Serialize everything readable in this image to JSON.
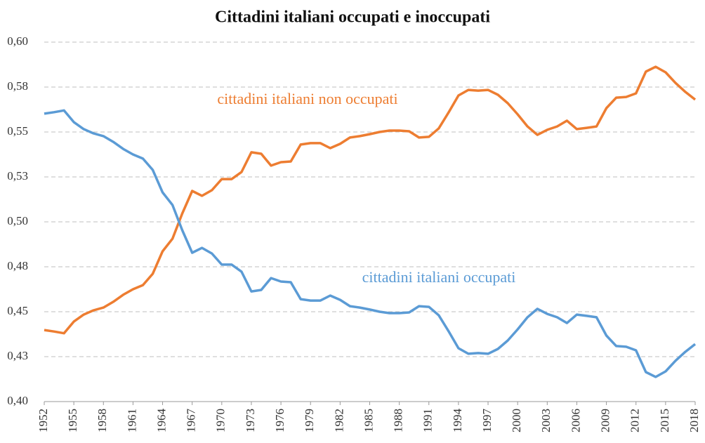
{
  "chart_data": {
    "type": "line",
    "title": "Cittadini italiani occupati e inoccupati",
    "x": [
      1952,
      1953,
      1954,
      1955,
      1956,
      1957,
      1958,
      1959,
      1960,
      1961,
      1962,
      1963,
      1964,
      1965,
      1966,
      1967,
      1968,
      1969,
      1970,
      1971,
      1972,
      1973,
      1974,
      1975,
      1976,
      1977,
      1978,
      1979,
      1980,
      1981,
      1982,
      1983,
      1984,
      1985,
      1986,
      1987,
      1988,
      1989,
      1990,
      1991,
      1992,
      1993,
      1994,
      1995,
      1996,
      1997,
      1998,
      1999,
      2000,
      2001,
      2002,
      2003,
      2004,
      2005,
      2006,
      2007,
      2008,
      2009,
      2010,
      2011,
      2012,
      2013,
      2014,
      2015,
      2016,
      2017,
      2018
    ],
    "xlim": [
      1952,
      2018
    ],
    "xticks": [
      1952,
      1955,
      1958,
      1961,
      1964,
      1967,
      1970,
      1973,
      1976,
      1979,
      1982,
      1985,
      1988,
      1991,
      1994,
      1997,
      2000,
      2003,
      2006,
      2009,
      2012,
      2015,
      2018
    ],
    "ylim": [
      0.4,
      0.6
    ],
    "yticks": [
      {
        "value": 0.4,
        "label": "0,40"
      },
      {
        "value": 0.425,
        "label": "0,43"
      },
      {
        "value": 0.45,
        "label": "0,45"
      },
      {
        "value": 0.475,
        "label": "0,48"
      },
      {
        "value": 0.5,
        "label": "0,50"
      },
      {
        "value": 0.525,
        "label": "0,53"
      },
      {
        "value": 0.55,
        "label": "0,55"
      },
      {
        "value": 0.575,
        "label": "0,58"
      },
      {
        "value": 0.6,
        "label": "0,60"
      }
    ],
    "grid": true,
    "series": [
      {
        "name": "cittadini italiani non occupati",
        "color": "#ed7d31",
        "values": [
          0.4398,
          0.439,
          0.438,
          0.4445,
          0.4484,
          0.4508,
          0.4523,
          0.4555,
          0.4594,
          0.4625,
          0.4648,
          0.4711,
          0.4836,
          0.4906,
          0.5047,
          0.5172,
          0.5145,
          0.5176,
          0.5238,
          0.5238,
          0.5277,
          0.5387,
          0.5379,
          0.5313,
          0.5332,
          0.5336,
          0.543,
          0.5438,
          0.5438,
          0.541,
          0.5434,
          0.5469,
          0.5477,
          0.5488,
          0.55,
          0.5508,
          0.5508,
          0.5504,
          0.5469,
          0.5473,
          0.552,
          0.5609,
          0.5703,
          0.5734,
          0.573,
          0.5734,
          0.5707,
          0.566,
          0.5598,
          0.5531,
          0.5484,
          0.5512,
          0.5531,
          0.5563,
          0.5516,
          0.5523,
          0.5531,
          0.5633,
          0.5691,
          0.5695,
          0.5715,
          0.5836,
          0.5863,
          0.5832,
          0.5773,
          0.5723,
          0.568
        ]
      },
      {
        "name": "cittadini italiani occupati",
        "color": "#5b9bd5",
        "values": [
          0.5602,
          0.561,
          0.562,
          0.5555,
          0.5516,
          0.5492,
          0.5477,
          0.5445,
          0.5406,
          0.5375,
          0.5352,
          0.5289,
          0.5164,
          0.5094,
          0.4953,
          0.4828,
          0.4855,
          0.4824,
          0.4762,
          0.4762,
          0.4723,
          0.4613,
          0.4621,
          0.4687,
          0.4668,
          0.4664,
          0.457,
          0.4562,
          0.4562,
          0.459,
          0.4566,
          0.4531,
          0.4523,
          0.4512,
          0.45,
          0.4492,
          0.4492,
          0.4496,
          0.4531,
          0.4527,
          0.448,
          0.4391,
          0.4297,
          0.4266,
          0.427,
          0.4266,
          0.4293,
          0.434,
          0.4402,
          0.4469,
          0.4516,
          0.4488,
          0.4469,
          0.4437,
          0.4484,
          0.4477,
          0.4469,
          0.4367,
          0.4309,
          0.4305,
          0.4285,
          0.4164,
          0.4137,
          0.4168,
          0.4227,
          0.4277,
          0.432
        ]
      }
    ]
  }
}
